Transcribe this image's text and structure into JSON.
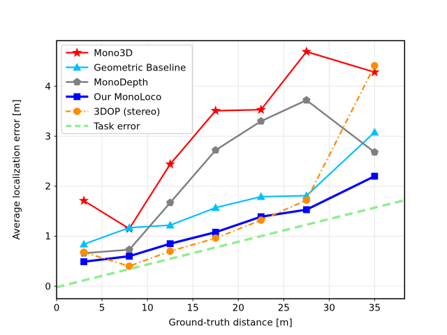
{
  "figure": {
    "background": "#ffffff"
  },
  "chart_data": {
    "type": "line",
    "title": "",
    "xlabel": "Ground-truth distance [m]",
    "ylabel": "Average localization error [m]",
    "xlim": [
      0,
      38.3
    ],
    "ylim": [
      -0.25,
      4.91
    ],
    "xticks": [
      0,
      5,
      10,
      15,
      20,
      25,
      30,
      35
    ],
    "yticks": [
      0,
      1,
      2,
      3,
      4
    ],
    "grid": true,
    "grid_color": "#e6e6e6",
    "legend_position": "upper-left",
    "legend_border_color": "#cccccc",
    "x": [
      3,
      8,
      12.5,
      17.5,
      22.5,
      27.5,
      35
    ],
    "series": [
      {
        "name": "Mono3D",
        "color": "#ff0000",
        "marker": "star",
        "linestyle": "solid",
        "linewidth": 2.2,
        "values": [
          1.71,
          1.15,
          2.44,
          3.51,
          3.53,
          4.69,
          4.28
        ]
      },
      {
        "name": "Geometric Baseline",
        "color": "#00bfff",
        "marker": "triangle",
        "linestyle": "solid",
        "linewidth": 2.2,
        "values": [
          0.84,
          1.17,
          1.22,
          1.57,
          1.79,
          1.81,
          3.08
        ]
      },
      {
        "name": "MonoDepth",
        "color": "#808080",
        "marker": "pentagon",
        "linestyle": "solid",
        "linewidth": 2.5,
        "values": [
          0.66,
          0.73,
          1.67,
          2.72,
          3.3,
          3.72,
          2.68
        ]
      },
      {
        "name": "Our MonoLoco",
        "color": "#0000ff",
        "marker": "square",
        "linestyle": "solid",
        "linewidth": 3.2,
        "values": [
          0.49,
          0.6,
          0.85,
          1.08,
          1.39,
          1.53,
          2.2
        ]
      },
      {
        "name": "3DOP (stereo)",
        "color": "#ff8c00",
        "marker": "circle",
        "linestyle": "dashdot",
        "linewidth": 2.3,
        "values": [
          0.68,
          0.4,
          0.7,
          0.96,
          1.32,
          1.72,
          4.41
        ]
      }
    ],
    "reference_line": {
      "name": "Task error",
      "color": "#90ee90",
      "linestyle": "dashed",
      "linewidth": 3.5,
      "points": [
        [
          0,
          -0.02
        ],
        [
          38.3,
          1.72
        ]
      ]
    }
  }
}
